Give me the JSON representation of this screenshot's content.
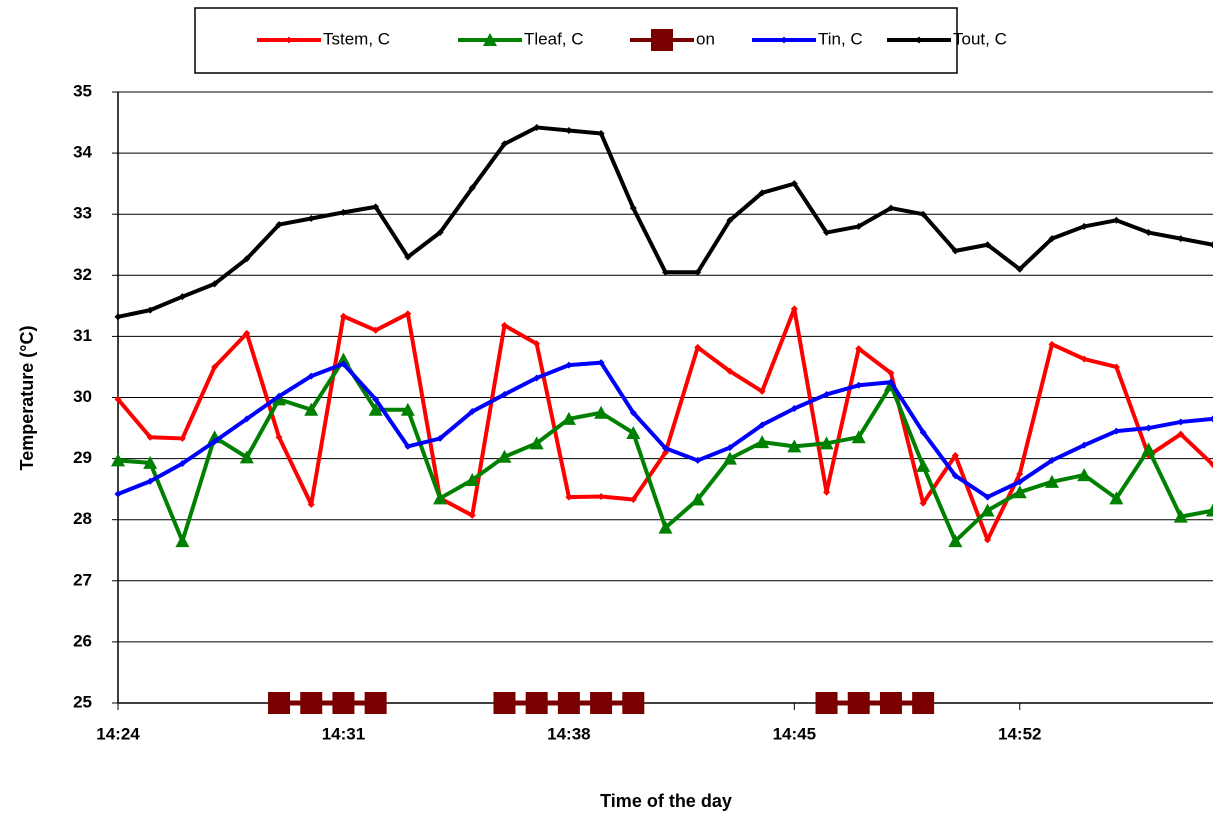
{
  "chart_data": {
    "type": "line",
    "x_label": "Time of the day",
    "y_label": "Temperature (°C)",
    "categories": [
      "14:24",
      null,
      null,
      null,
      null,
      null,
      null,
      "14:31",
      null,
      null,
      null,
      null,
      null,
      null,
      "14:38",
      null,
      null,
      null,
      null,
      null,
      null,
      "14:45",
      null,
      null,
      null,
      null,
      null,
      null,
      "14:52",
      null,
      null,
      null,
      null,
      null,
      null
    ],
    "ylim": [
      25,
      35
    ],
    "yticks": [
      25,
      26,
      27,
      28,
      29,
      30,
      31,
      32,
      33,
      34,
      35
    ],
    "grid": true,
    "series": [
      {
        "name": "Tstem, C",
        "color": "#ff0000",
        "marker": "diamond",
        "values": [
          29.97,
          29.35,
          29.33,
          30.5,
          31.05,
          29.35,
          28.25,
          31.33,
          31.1,
          31.37,
          28.35,
          28.07,
          31.18,
          30.88,
          28.37,
          28.38,
          28.33,
          29.1,
          30.82,
          30.43,
          30.1,
          31.45,
          28.45,
          30.8,
          30.4,
          28.27,
          29.05,
          27.67,
          28.75,
          30.87,
          30.63,
          30.5,
          29.05,
          29.4,
          28.9
        ]
      },
      {
        "name": "Tleaf, C",
        "color": "#008000",
        "marker": "triangle",
        "values": [
          28.97,
          28.93,
          27.65,
          29.35,
          29.02,
          29.97,
          29.8,
          30.62,
          29.8,
          29.8,
          28.35,
          28.65,
          29.03,
          29.25,
          29.65,
          29.75,
          29.42,
          27.87,
          28.33,
          29.0,
          29.27,
          29.2,
          29.25,
          29.35,
          30.2,
          28.88,
          27.65,
          28.15,
          28.45,
          28.62,
          28.73,
          28.35,
          29.15,
          28.05,
          28.15
        ]
      },
      {
        "name": "on",
        "color": "#7a0000",
        "marker": "square",
        "values": [
          null,
          null,
          null,
          null,
          null,
          25,
          25,
          25,
          25,
          null,
          null,
          null,
          25,
          25,
          25,
          25,
          25,
          null,
          null,
          null,
          null,
          null,
          25,
          25,
          25,
          25,
          null,
          null,
          null,
          null,
          null,
          null,
          null,
          null,
          null
        ]
      },
      {
        "name": "Tin, C",
        "color": "#0000ff",
        "marker": "diamond",
        "values": [
          28.42,
          28.63,
          28.92,
          29.28,
          29.65,
          30.02,
          30.35,
          30.55,
          29.97,
          29.2,
          29.33,
          29.77,
          30.05,
          30.32,
          30.53,
          30.57,
          29.75,
          29.17,
          28.97,
          29.18,
          29.55,
          29.82,
          30.05,
          30.2,
          30.25,
          29.43,
          28.72,
          28.37,
          28.62,
          28.97,
          29.22,
          29.45,
          29.5,
          29.6,
          29.65
        ]
      },
      {
        "name": "Tout, C",
        "color": "#000000",
        "marker": "diamond",
        "values": [
          31.32,
          31.43,
          31.65,
          31.86,
          32.27,
          32.83,
          32.93,
          33.03,
          33.12,
          32.3,
          32.7,
          33.43,
          34.15,
          34.42,
          34.37,
          34.32,
          33.1,
          32.05,
          32.05,
          32.9,
          33.35,
          33.5,
          32.7,
          32.8,
          33.1,
          33.0,
          32.4,
          32.5,
          32.1,
          32.6,
          32.8,
          32.9,
          32.7,
          32.6,
          32.5
        ]
      }
    ]
  }
}
